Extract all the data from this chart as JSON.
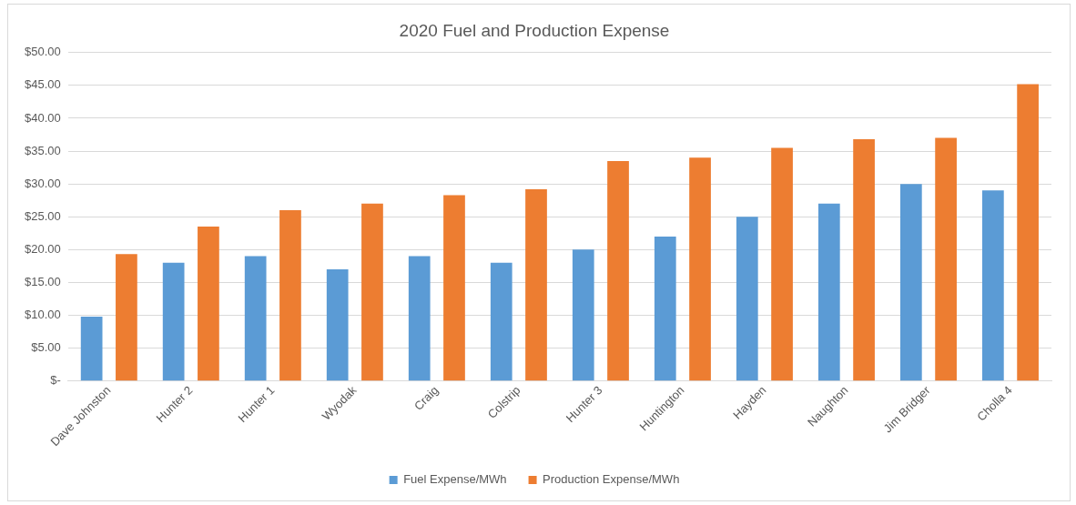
{
  "chart_data": {
    "type": "bar",
    "title": "2020 Fuel and Production Expense",
    "categories": [
      "Dave Johnston",
      "Hunter 2",
      "Hunter 1",
      "Wyodak",
      "Craig",
      "Colstrip",
      "Hunter 3",
      "Huntington",
      "Hayden",
      "Naughton",
      "Jim Bridger",
      "Cholla 4"
    ],
    "series": [
      {
        "name": "Fuel Expense/MWh",
        "color": "#5b9bd5",
        "values": [
          9.8,
          18,
          19,
          17,
          19,
          18,
          20,
          22,
          25,
          27,
          30,
          29
        ]
      },
      {
        "name": "Production Expense/MWh",
        "color": "#ed7d31",
        "values": [
          19.3,
          23.5,
          26,
          27,
          28.3,
          29.2,
          33.5,
          34,
          35.5,
          36.8,
          37,
          45.2
        ]
      }
    ],
    "ylim": [
      0,
      50
    ],
    "yticks": [
      {
        "value": 0,
        "label": "$-"
      },
      {
        "value": 5,
        "label": "$5.00"
      },
      {
        "value": 10,
        "label": "$10.00"
      },
      {
        "value": 15,
        "label": "$15.00"
      },
      {
        "value": 20,
        "label": "$20.00"
      },
      {
        "value": 25,
        "label": "$25.00"
      },
      {
        "value": 30,
        "label": "$30.00"
      },
      {
        "value": 35,
        "label": "$35.00"
      },
      {
        "value": 40,
        "label": "$40.00"
      },
      {
        "value": 45,
        "label": "$45.00"
      },
      {
        "value": 50,
        "label": "$50.00"
      }
    ],
    "grid": "y",
    "legend": "bottom"
  }
}
